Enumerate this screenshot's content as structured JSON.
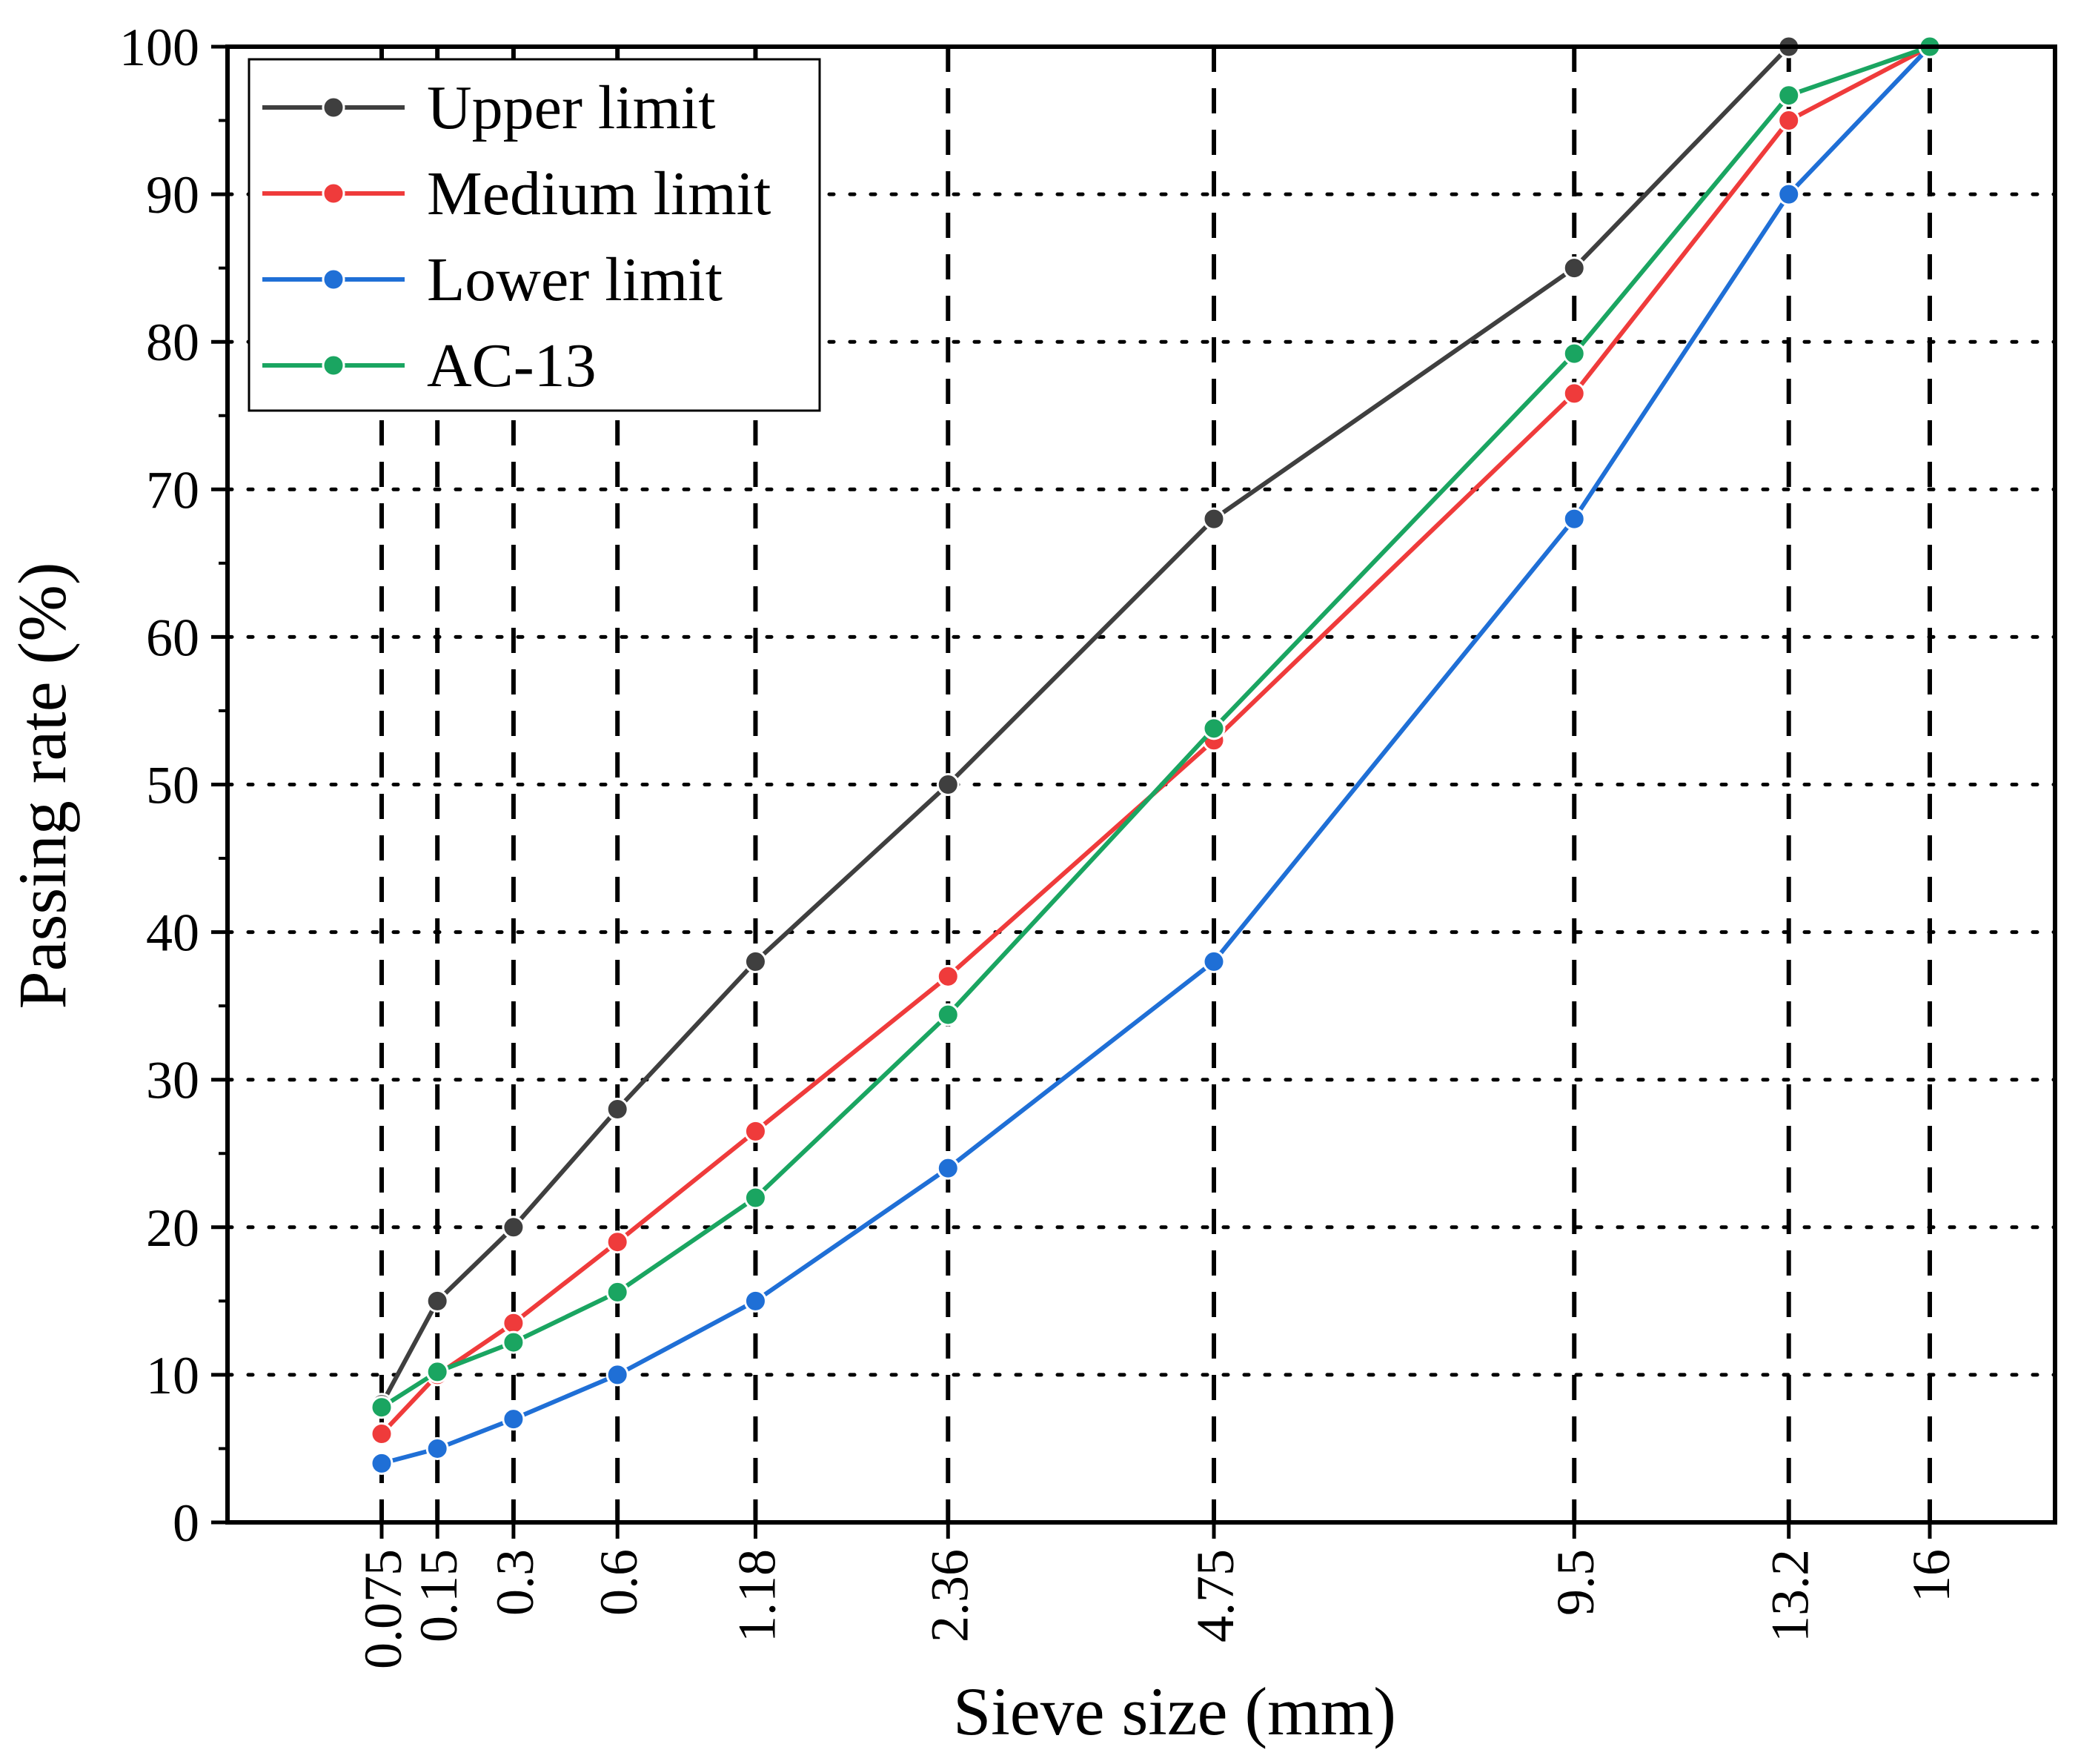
{
  "chart_data": {
    "type": "line",
    "title": "",
    "xlabel": "Sieve size (mm)",
    "ylabel": "Passing rate (%)",
    "x_scale": "gradation power 0.45",
    "categories": [
      "0.075",
      "0.15",
      "0.3",
      "0.6",
      "1.18",
      "2.36",
      "4.75",
      "9.5",
      "13.2",
      "16"
    ],
    "x": [
      0.075,
      0.15,
      0.3,
      0.6,
      1.18,
      2.36,
      4.75,
      9.5,
      13.2,
      16
    ],
    "ylim": [
      0,
      100
    ],
    "yticks": [
      "0",
      "10",
      "20",
      "30",
      "40",
      "50",
      "60",
      "70",
      "80",
      "90",
      "100"
    ],
    "grid": "dashed vertical lines at sieve sizes, dotted horizontal lines at each 10%",
    "legend_position": "top-left",
    "series": [
      {
        "name": "Upper limit",
        "color": "#3f3f3f",
        "values": [
          8,
          15,
          20,
          28,
          38,
          50,
          68,
          85,
          100,
          100
        ]
      },
      {
        "name": "Medium limit",
        "color": "#ef3b3b",
        "values": [
          6,
          10,
          13.5,
          19,
          26.5,
          37,
          53,
          76.5,
          95,
          100
        ]
      },
      {
        "name": "Lower limit",
        "color": "#1f6fd6",
        "values": [
          4,
          5,
          7,
          10,
          15,
          24,
          38,
          68,
          90,
          100
        ]
      },
      {
        "name": "AC-13",
        "color": "#1aa561",
        "values": [
          7.8,
          10.2,
          12.2,
          15.6,
          22,
          34.4,
          53.8,
          79.2,
          96.7,
          100
        ]
      }
    ]
  }
}
